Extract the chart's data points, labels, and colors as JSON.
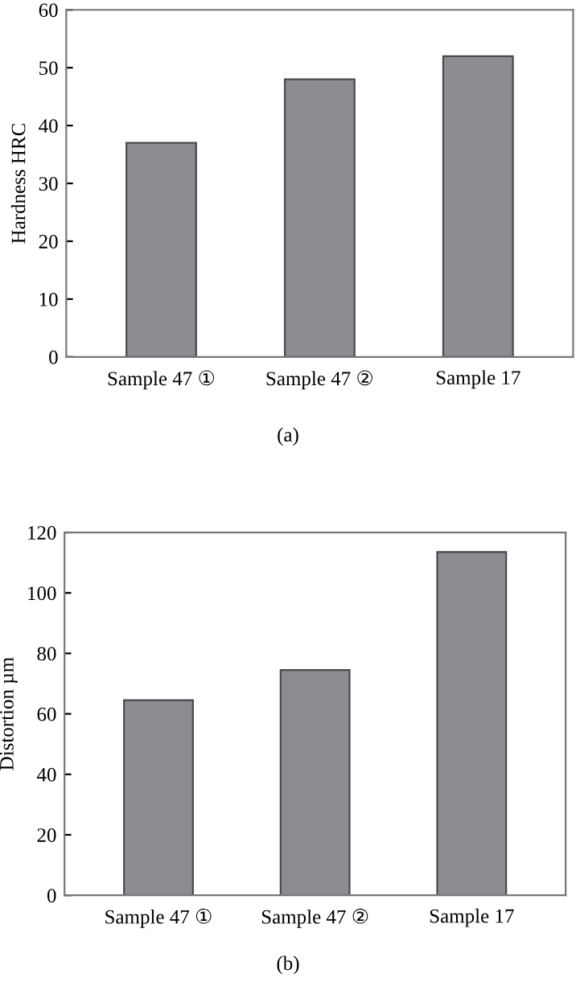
{
  "chart_data": [
    {
      "type": "bar",
      "ylabel": "Hardness HRC",
      "categories": [
        "Sample 47 ①",
        "Sample 47 ②",
        "Sample 17"
      ],
      "values": [
        37,
        48,
        52
      ],
      "color": "#8c8d91",
      "ylim": [
        0,
        60
      ],
      "yticks": [
        0,
        10,
        20,
        30,
        40,
        50,
        60
      ],
      "grid": false,
      "annotations": [
        "(a)"
      ]
    },
    {
      "type": "bar",
      "ylabel": "Distortion µm",
      "categories": [
        "Sample 47 ①",
        "Sample 47 ②",
        "Sample 17"
      ],
      "values": [
        64.5,
        74.5,
        113.5
      ],
      "color": "#8c8d91",
      "ylim": [
        0,
        120
      ],
      "yticks": [
        0,
        20,
        40,
        60,
        80,
        100,
        120
      ],
      "grid": false,
      "annotations": [
        "(b)"
      ]
    }
  ]
}
